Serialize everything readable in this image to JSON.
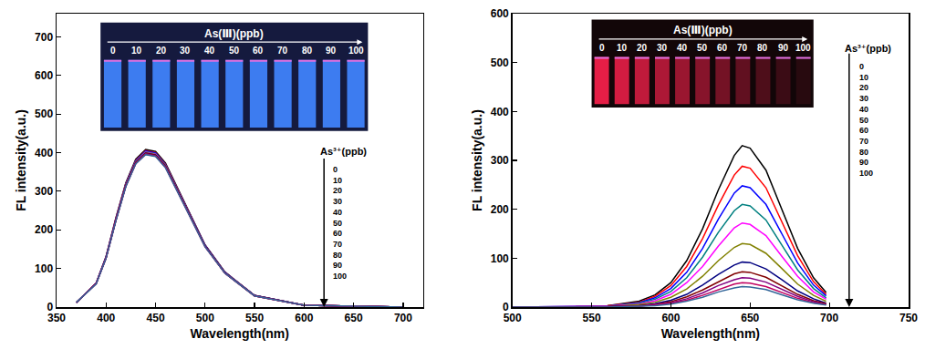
{
  "chart_data": [
    {
      "type": "line",
      "x_label": "Wavelength(nm)",
      "y_label": "FL intensity(a.u.)",
      "xlim": [
        350,
        720
      ],
      "xticks": [
        350,
        400,
        450,
        500,
        550,
        600,
        650,
        700
      ],
      "ylim": [
        0,
        760
      ],
      "yticks": [
        0,
        100,
        200,
        300,
        400,
        500,
        600,
        700
      ],
      "grid": false,
      "inset": {
        "title": "As(Ⅲ)(ppb)",
        "labels": [
          0,
          10,
          20,
          30,
          40,
          50,
          60,
          70,
          80,
          90,
          100
        ]
      },
      "arrow_title": "As³⁺(ppb)",
      "x": [
        370,
        390,
        400,
        410,
        420,
        430,
        440,
        450,
        460,
        480,
        500,
        520,
        550,
        600,
        700
      ],
      "series": [
        {
          "name": "0",
          "color": "#000000",
          "values": [
            12,
            62,
            131,
            232,
            322,
            383,
            408,
            403,
            373,
            267,
            161,
            91,
            30,
            5,
            0
          ]
        },
        {
          "name": "10",
          "color": "#ff0000",
          "values": [
            12,
            62,
            130,
            230,
            320,
            380,
            405,
            400,
            370,
            265,
            160,
            90,
            30,
            5,
            0
          ]
        },
        {
          "name": "20",
          "color": "#0000ff",
          "values": [
            12,
            62,
            130,
            229,
            319,
            379,
            404,
            399,
            369,
            264,
            160,
            90,
            30,
            5,
            0
          ]
        },
        {
          "name": "30",
          "color": "#008080",
          "values": [
            12,
            61,
            129,
            228,
            318,
            377,
            402,
            397,
            367,
            263,
            159,
            89,
            30,
            5,
            0
          ]
        },
        {
          "name": "40",
          "color": "#ff00ff",
          "values": [
            12,
            61,
            129,
            228,
            317,
            376,
            401,
            396,
            366,
            262,
            158,
            89,
            30,
            5,
            0
          ]
        },
        {
          "name": "50",
          "color": "#808000",
          "values": [
            12,
            61,
            128,
            227,
            316,
            375,
            400,
            395,
            366,
            262,
            158,
            89,
            30,
            5,
            0
          ]
        },
        {
          "name": "60",
          "color": "#000080",
          "values": [
            12,
            61,
            128,
            227,
            315,
            374,
            399,
            394,
            364,
            261,
            158,
            89,
            30,
            5,
            0
          ]
        },
        {
          "name": "70",
          "color": "#800000",
          "values": [
            12,
            61,
            128,
            226,
            315,
            374,
            398,
            393,
            364,
            260,
            157,
            88,
            29,
            5,
            0
          ]
        },
        {
          "name": "80",
          "color": "#800080",
          "values": [
            12,
            61,
            127,
            225,
            314,
            372,
            397,
            392,
            363,
            260,
            157,
            88,
            29,
            5,
            0
          ]
        },
        {
          "name": "90",
          "color": "#c00060",
          "values": [
            12,
            61,
            127,
            225,
            313,
            372,
            396,
            391,
            362,
            259,
            156,
            88,
            29,
            5,
            0
          ]
        },
        {
          "name": "100",
          "color": "#336699",
          "values": [
            12,
            60,
            127,
            224,
            312,
            371,
            395,
            390,
            361,
            258,
            156,
            88,
            29,
            5,
            0
          ]
        }
      ]
    },
    {
      "type": "line",
      "x_label": "Wavelength(nm)",
      "y_label": "FL intensity(a.u.)",
      "xlim": [
        500,
        750
      ],
      "xticks": [
        500,
        550,
        600,
        650,
        700,
        750
      ],
      "ylim": [
        0,
        600
      ],
      "yticks": [
        0,
        100,
        200,
        300,
        400,
        500,
        600
      ],
      "grid": false,
      "inset": {
        "title": "As(Ⅲ)(ppb)",
        "labels": [
          0,
          10,
          20,
          30,
          40,
          50,
          60,
          70,
          80,
          90,
          100
        ]
      },
      "arrow_title": "As³⁺(ppb)",
      "x": [
        500,
        540,
        560,
        580,
        590,
        600,
        610,
        620,
        630,
        640,
        645,
        650,
        660,
        670,
        680,
        690,
        698
      ],
      "series": [
        {
          "name": "0",
          "color": "#000000",
          "values": [
            0,
            1,
            3,
            12,
            25,
            50,
            95,
            160,
            240,
            310,
            330,
            325,
            280,
            200,
            120,
            60,
            30
          ]
        },
        {
          "name": "10",
          "color": "#ff0000",
          "values": [
            0,
            1,
            3,
            10,
            22,
            44,
            83,
            140,
            209,
            270,
            288,
            284,
            244,
            175,
            105,
            52,
            26
          ]
        },
        {
          "name": "20",
          "color": "#0000ff",
          "values": [
            0,
            1,
            2,
            9,
            19,
            38,
            71,
            120,
            180,
            233,
            248,
            244,
            210,
            150,
            90,
            45,
            23
          ]
        },
        {
          "name": "30",
          "color": "#008080",
          "values": [
            0,
            1,
            2,
            8,
            16,
            32,
            60,
            102,
            153,
            197,
            210,
            207,
            178,
            127,
            76,
            38,
            19
          ]
        },
        {
          "name": "40",
          "color": "#ff00ff",
          "values": [
            0,
            1,
            2,
            6,
            13,
            26,
            50,
            83,
            125,
            162,
            172,
            169,
            146,
            104,
            63,
            31,
            16
          ]
        },
        {
          "name": "50",
          "color": "#808000",
          "values": [
            0,
            0,
            1,
            5,
            10,
            20,
            37,
            63,
            95,
            122,
            130,
            128,
            110,
            79,
            47,
            24,
            12
          ]
        },
        {
          "name": "60",
          "color": "#000080",
          "values": [
            0,
            0,
            1,
            3,
            7,
            14,
            26,
            45,
            67,
            86,
            92,
            91,
            78,
            56,
            33,
            17,
            8
          ]
        },
        {
          "name": "70",
          "color": "#800000",
          "values": [
            0,
            0,
            1,
            3,
            5,
            11,
            21,
            35,
            52,
            68,
            72,
            71,
            61,
            44,
            26,
            13,
            7
          ]
        },
        {
          "name": "80",
          "color": "#800080",
          "values": [
            0,
            0,
            1,
            2,
            5,
            9,
            17,
            29,
            44,
            56,
            60,
            59,
            51,
            36,
            22,
            11,
            5
          ]
        },
        {
          "name": "90",
          "color": "#c00060",
          "values": [
            0,
            0,
            0,
            2,
            4,
            8,
            14,
            24,
            36,
            47,
            50,
            49,
            42,
            30,
            18,
            9,
            5
          ]
        },
        {
          "name": "100",
          "color": "#336699",
          "values": [
            0,
            0,
            0,
            2,
            3,
            6,
            12,
            20,
            31,
            39,
            42,
            41,
            36,
            25,
            15,
            8,
            4
          ]
        }
      ]
    }
  ]
}
